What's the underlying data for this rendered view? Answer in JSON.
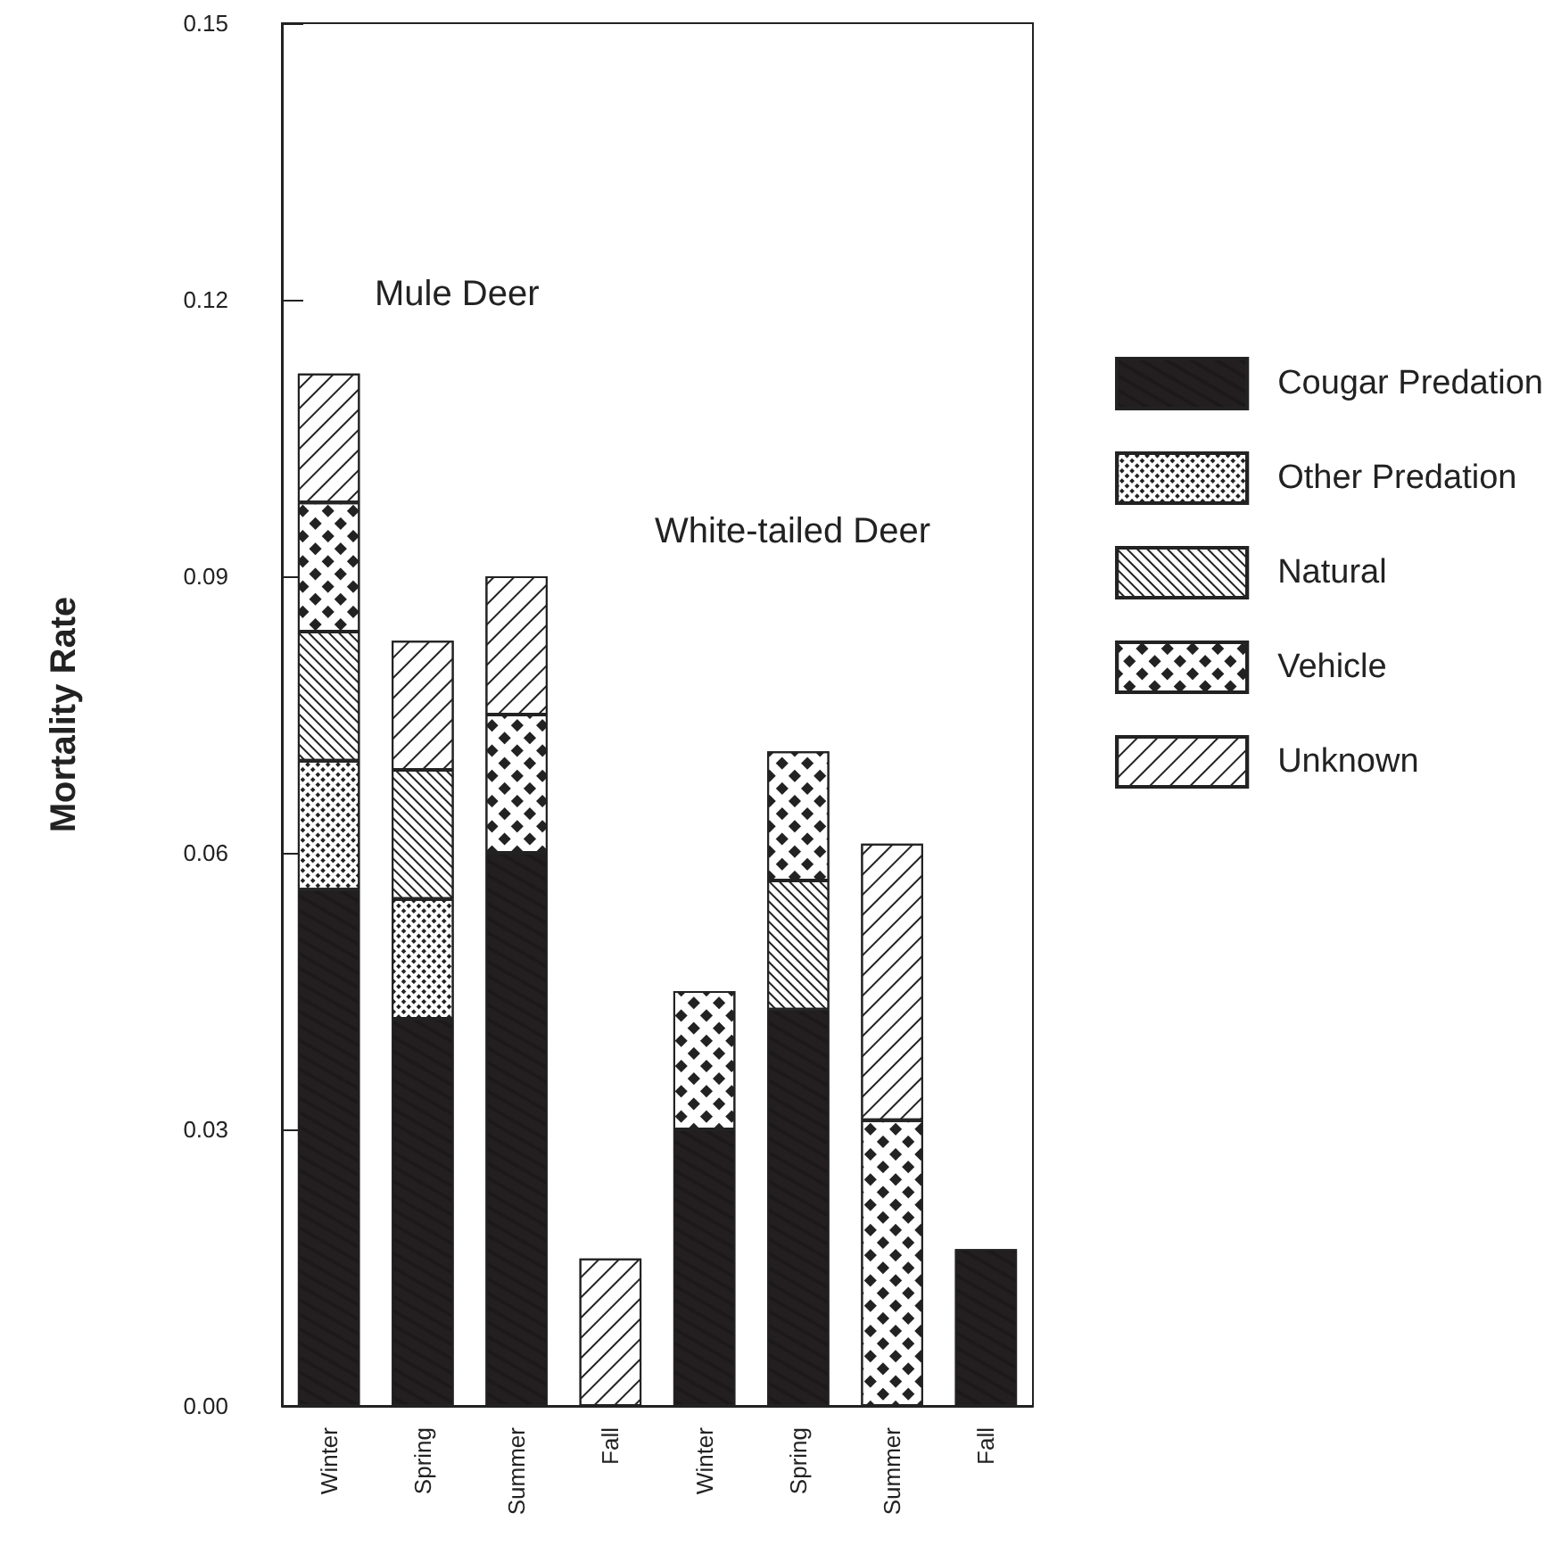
{
  "chart_data": {
    "type": "bar",
    "stacked": true,
    "ylabel": "Mortality Rate",
    "categories": [
      "Winter",
      "Spring",
      "Summer",
      "Fall",
      "Winter",
      "Spring",
      "Summer",
      "Fall"
    ],
    "series": [
      {
        "name": "Cougar Predation",
        "color": "#231f20",
        "values": [
          0.056,
          0.042,
          0.06,
          null,
          0.03,
          0.043,
          null,
          0.017
        ]
      },
      {
        "name": "Other Predation",
        "color": "#ffffff",
        "values": [
          0.014,
          0.013,
          null,
          null,
          null,
          null,
          null,
          null
        ]
      },
      {
        "name": "Natural",
        "color": "#ffffff",
        "values": [
          0.014,
          0.014,
          null,
          null,
          null,
          0.014,
          null,
          null
        ]
      },
      {
        "name": "Vehicle",
        "color": "#ffffff",
        "values": [
          0.014,
          null,
          0.015,
          null,
          0.015,
          0.014,
          0.031,
          null
        ]
      },
      {
        "name": "Unknown",
        "color": "#ffffff",
        "values": [
          0.014,
          0.014,
          0.015,
          0.016,
          null,
          null,
          0.03,
          null
        ]
      }
    ],
    "ylim": [
      0,
      0.15
    ],
    "yticks": [
      {
        "value": 0,
        "label": "0.00"
      },
      0.03,
      0.06,
      0.09,
      0.12,
      0.15
    ],
    "annotations": [
      "Mule Deer",
      "White-tailed Deer"
    ],
    "legend": "right",
    "grid": false
  }
}
